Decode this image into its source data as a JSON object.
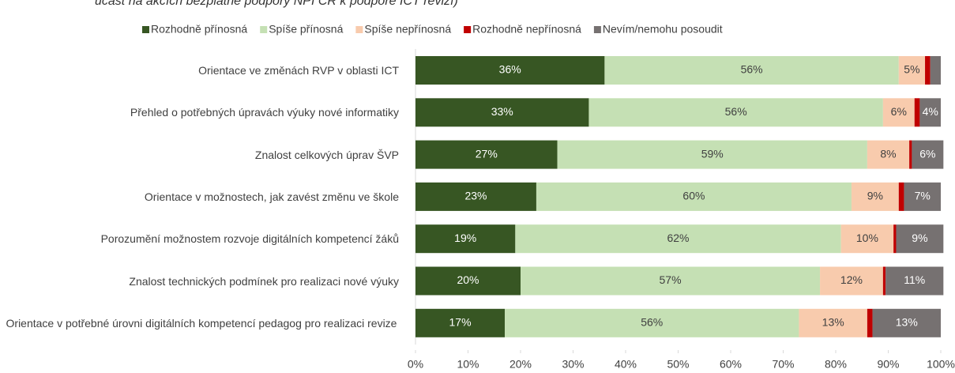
{
  "chart_data": {
    "type": "stacked-bar-horizontal",
    "title": "účast na akcích bezplatné podpory NPI ČR k podpoře ICT revizí)",
    "categories": [
      "Orientace ve změnách RVP v oblasti ICT",
      "Přehled o potřebných úpravách výuky nové informatiky",
      "Znalost celkových úprav ŠVP",
      "Orientace v možnostech, jak zavést změnu ve škole",
      "Porozumění možnostem rozvoje digitálních kompetencí žáků",
      "Znalost technických podmínek pro realizaci nové výuky",
      "Orientace v potřebné úrovni digitálních kompetencí pedagog pro realizaci revize"
    ],
    "series": [
      {
        "name": "Rozhodně přínosná",
        "color": "#375623",
        "values": [
          36,
          33,
          27,
          23,
          19,
          20,
          17
        ],
        "value_labels": [
          "36%",
          "33%",
          "27%",
          "23%",
          "19%",
          "20%",
          "17%"
        ]
      },
      {
        "name": "Spíše přínosná",
        "color": "#c5e0b4",
        "values": [
          56,
          56,
          59,
          60,
          62,
          57,
          56
        ],
        "value_labels": [
          "56%",
          "56%",
          "59%",
          "60%",
          "62%",
          "57%",
          "56%"
        ]
      },
      {
        "name": "Spíše nepřínosná",
        "color": "#f8cbad",
        "values": [
          5,
          6,
          8,
          9,
          10,
          12,
          13
        ],
        "value_labels": [
          "5%",
          "6%",
          "8%",
          "9%",
          "10%",
          "12%",
          "13%"
        ]
      },
      {
        "name": "Rozhodně nepřínosná",
        "color": "#c00000",
        "values": [
          1,
          1,
          0.5,
          1,
          0.5,
          0.5,
          1
        ],
        "value_labels": [
          null,
          null,
          null,
          null,
          null,
          null,
          null
        ]
      },
      {
        "name": "Nevím/nemohu posoudit",
        "color": "#767171",
        "values": [
          2,
          4,
          6,
          7,
          9,
          11,
          13
        ],
        "value_labels": [
          null,
          "4%",
          "6%",
          "7%",
          "9%",
          "11%",
          "13%"
        ]
      }
    ],
    "xlim": [
      0,
      100
    ],
    "xticks": [
      {
        "value": 0,
        "label": "0%"
      },
      {
        "value": 10,
        "label": "10%"
      },
      {
        "value": 20,
        "label": "20%"
      },
      {
        "value": 30,
        "label": "30%"
      },
      {
        "value": 40,
        "label": "40%"
      },
      {
        "value": 50,
        "label": "50%"
      },
      {
        "value": 60,
        "label": "60%"
      },
      {
        "value": 70,
        "label": "70%"
      },
      {
        "value": 80,
        "label": "80%"
      },
      {
        "value": 90,
        "label": "90%"
      },
      {
        "value": 100,
        "label": "100%"
      }
    ],
    "legend": "top"
  }
}
